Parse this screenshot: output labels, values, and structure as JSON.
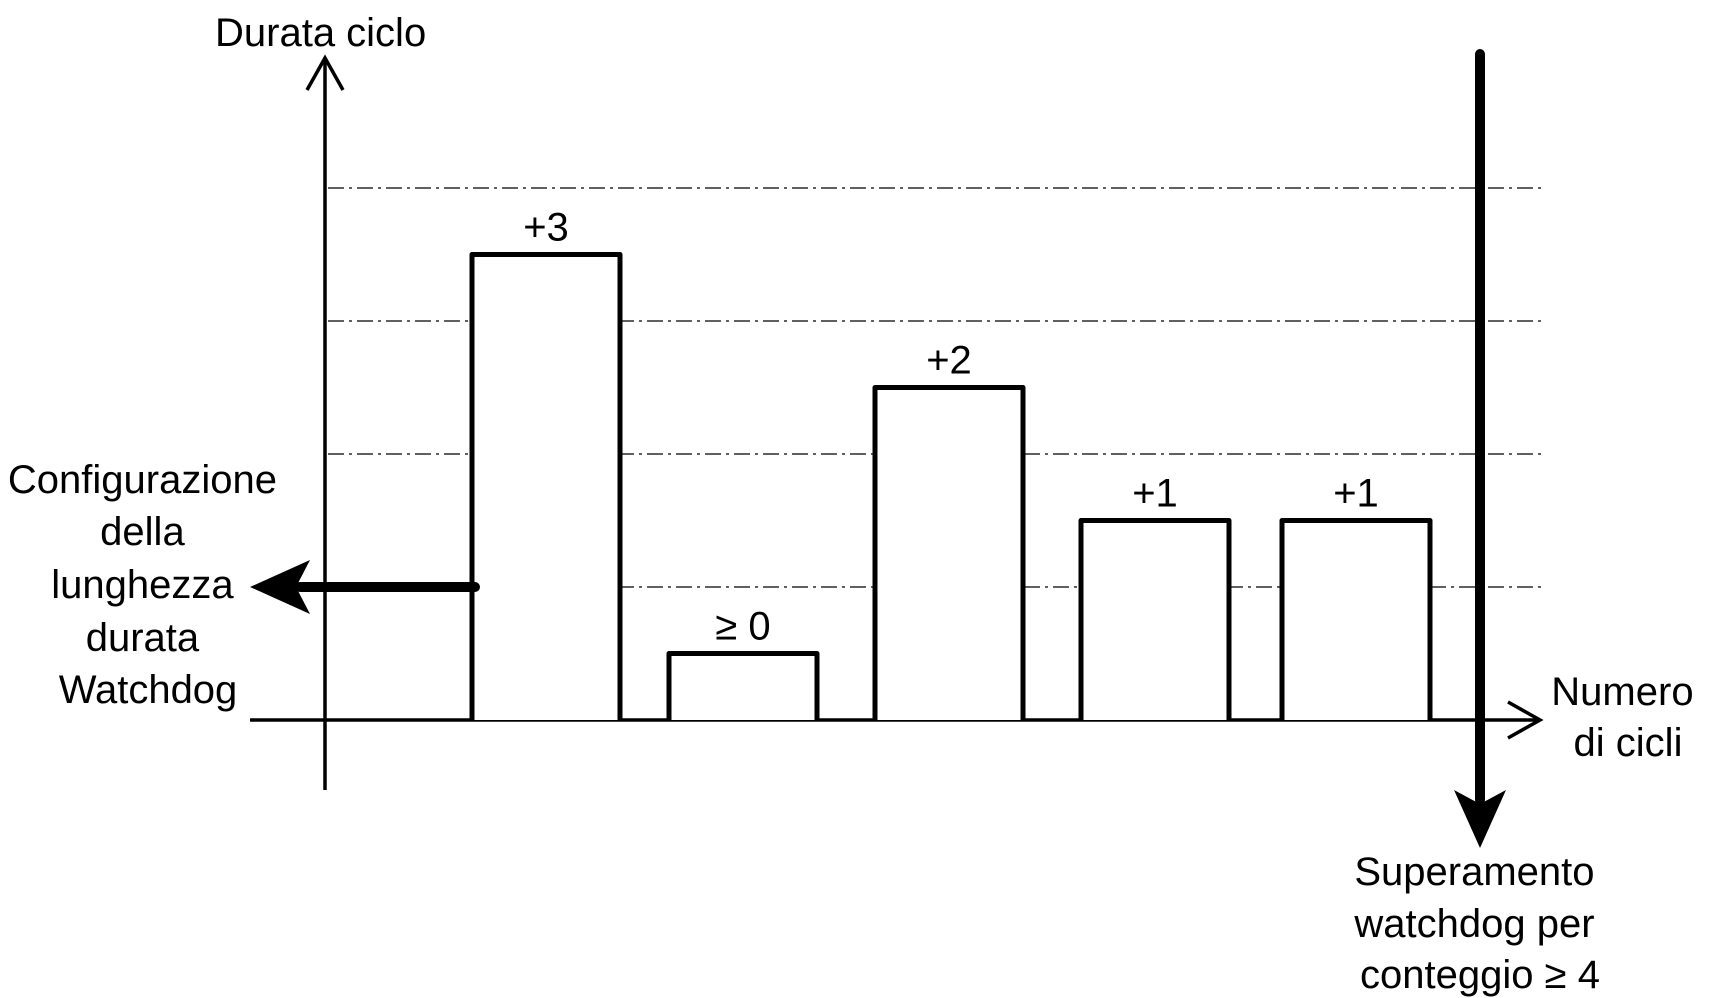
{
  "axes": {
    "y_title": "Durata ciclo",
    "x_title_lines": [
      "Numero",
      "di cicli"
    ]
  },
  "watchdog_config": {
    "label_lines": [
      "Configurazione",
      "della",
      "lunghezza",
      "durata",
      "Watchdog"
    ]
  },
  "watchdog_exceeded": {
    "label_lines": [
      "Superamento",
      "watchdog per",
      "conteggio ≥ 4"
    ]
  },
  "chart_data": {
    "type": "bar",
    "categories": [
      "",
      "",
      "",
      "",
      ""
    ],
    "values": [
      3.5,
      0.5,
      2.5,
      1.5,
      1.5
    ],
    "bar_labels": [
      "+3",
      "≥ 0",
      "+2",
      "+1",
      "+1"
    ],
    "watchdog_length": 1,
    "threshold_count": 4,
    "grid": "horizontal dash-dot"
  }
}
